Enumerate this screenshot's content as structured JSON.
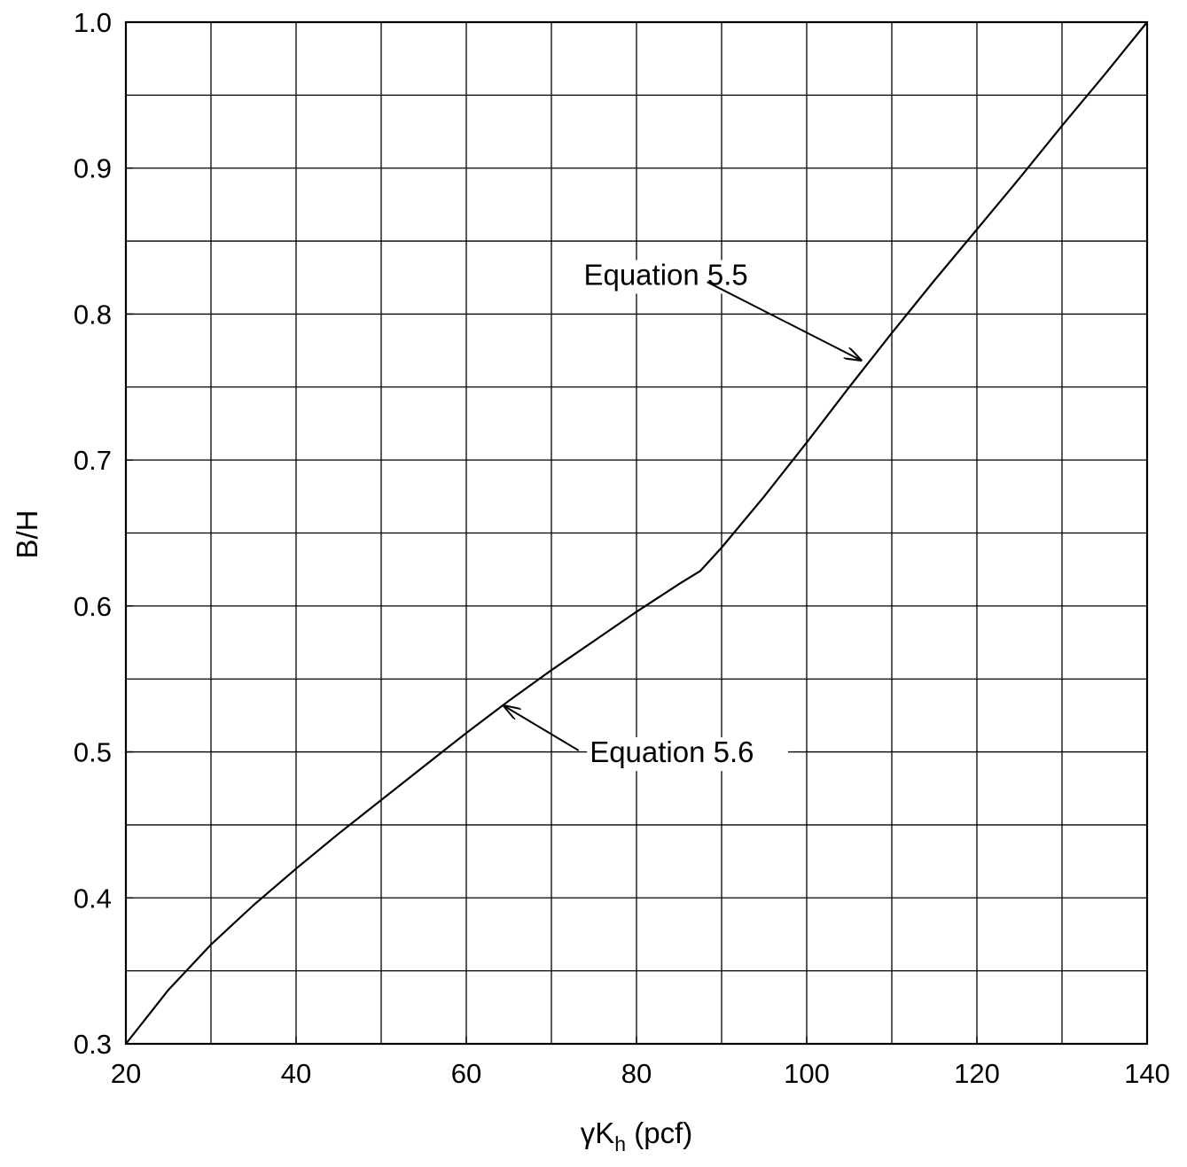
{
  "chart_data": {
    "type": "line",
    "title": "",
    "xlabel": {
      "main": "γK",
      "sub": "h",
      "suffix": " (pcf)"
    },
    "ylabel": "B/H",
    "xlim": [
      20,
      140
    ],
    "ylim": [
      0.3,
      1.0
    ],
    "x_ticks": [
      20,
      40,
      60,
      80,
      100,
      120,
      140
    ],
    "x_tick_labels": [
      "20",
      "40",
      "60",
      "80",
      "100",
      "120",
      "140"
    ],
    "y_ticks": [
      0.3,
      0.4,
      0.5,
      0.6,
      0.7,
      0.8,
      0.9,
      1.0
    ],
    "y_tick_labels": [
      "0.3",
      "0.4",
      "0.5",
      "0.6",
      "0.7",
      "0.8",
      "0.9",
      "1.0"
    ],
    "grid": true,
    "grid_x_step": 10,
    "grid_y_step": 0.05,
    "series": [
      {
        "name": "",
        "color": "#000000",
        "x": [
          20,
          25,
          30,
          35,
          40,
          45,
          50,
          55,
          60,
          65,
          70,
          75,
          80,
          85,
          87.5,
          90,
          95,
          100,
          105,
          110,
          115,
          120,
          125,
          130,
          135,
          140
        ],
        "y": [
          0.3,
          0.337,
          0.368,
          0.395,
          0.42,
          0.444,
          0.467,
          0.49,
          0.513,
          0.535,
          0.556,
          0.576,
          0.596,
          0.615,
          0.624,
          0.64,
          0.675,
          0.712,
          0.75,
          0.787,
          0.823,
          0.858,
          0.893,
          0.929,
          0.964,
          1.0
        ]
      }
    ],
    "annotations": [
      {
        "text": "Equation 5.5",
        "x": 73.8,
        "y": 0.82,
        "arrow_from": [
          88.3,
          0.822
        ],
        "arrow_to": [
          106.5,
          0.768
        ],
        "anchor": "start"
      },
      {
        "text": "Equation 5.6",
        "x": 74.5,
        "y": 0.493,
        "arrow_from": [
          73.2,
          0.501
        ],
        "arrow_to": [
          64.3,
          0.532
        ],
        "anchor": "start"
      }
    ]
  }
}
